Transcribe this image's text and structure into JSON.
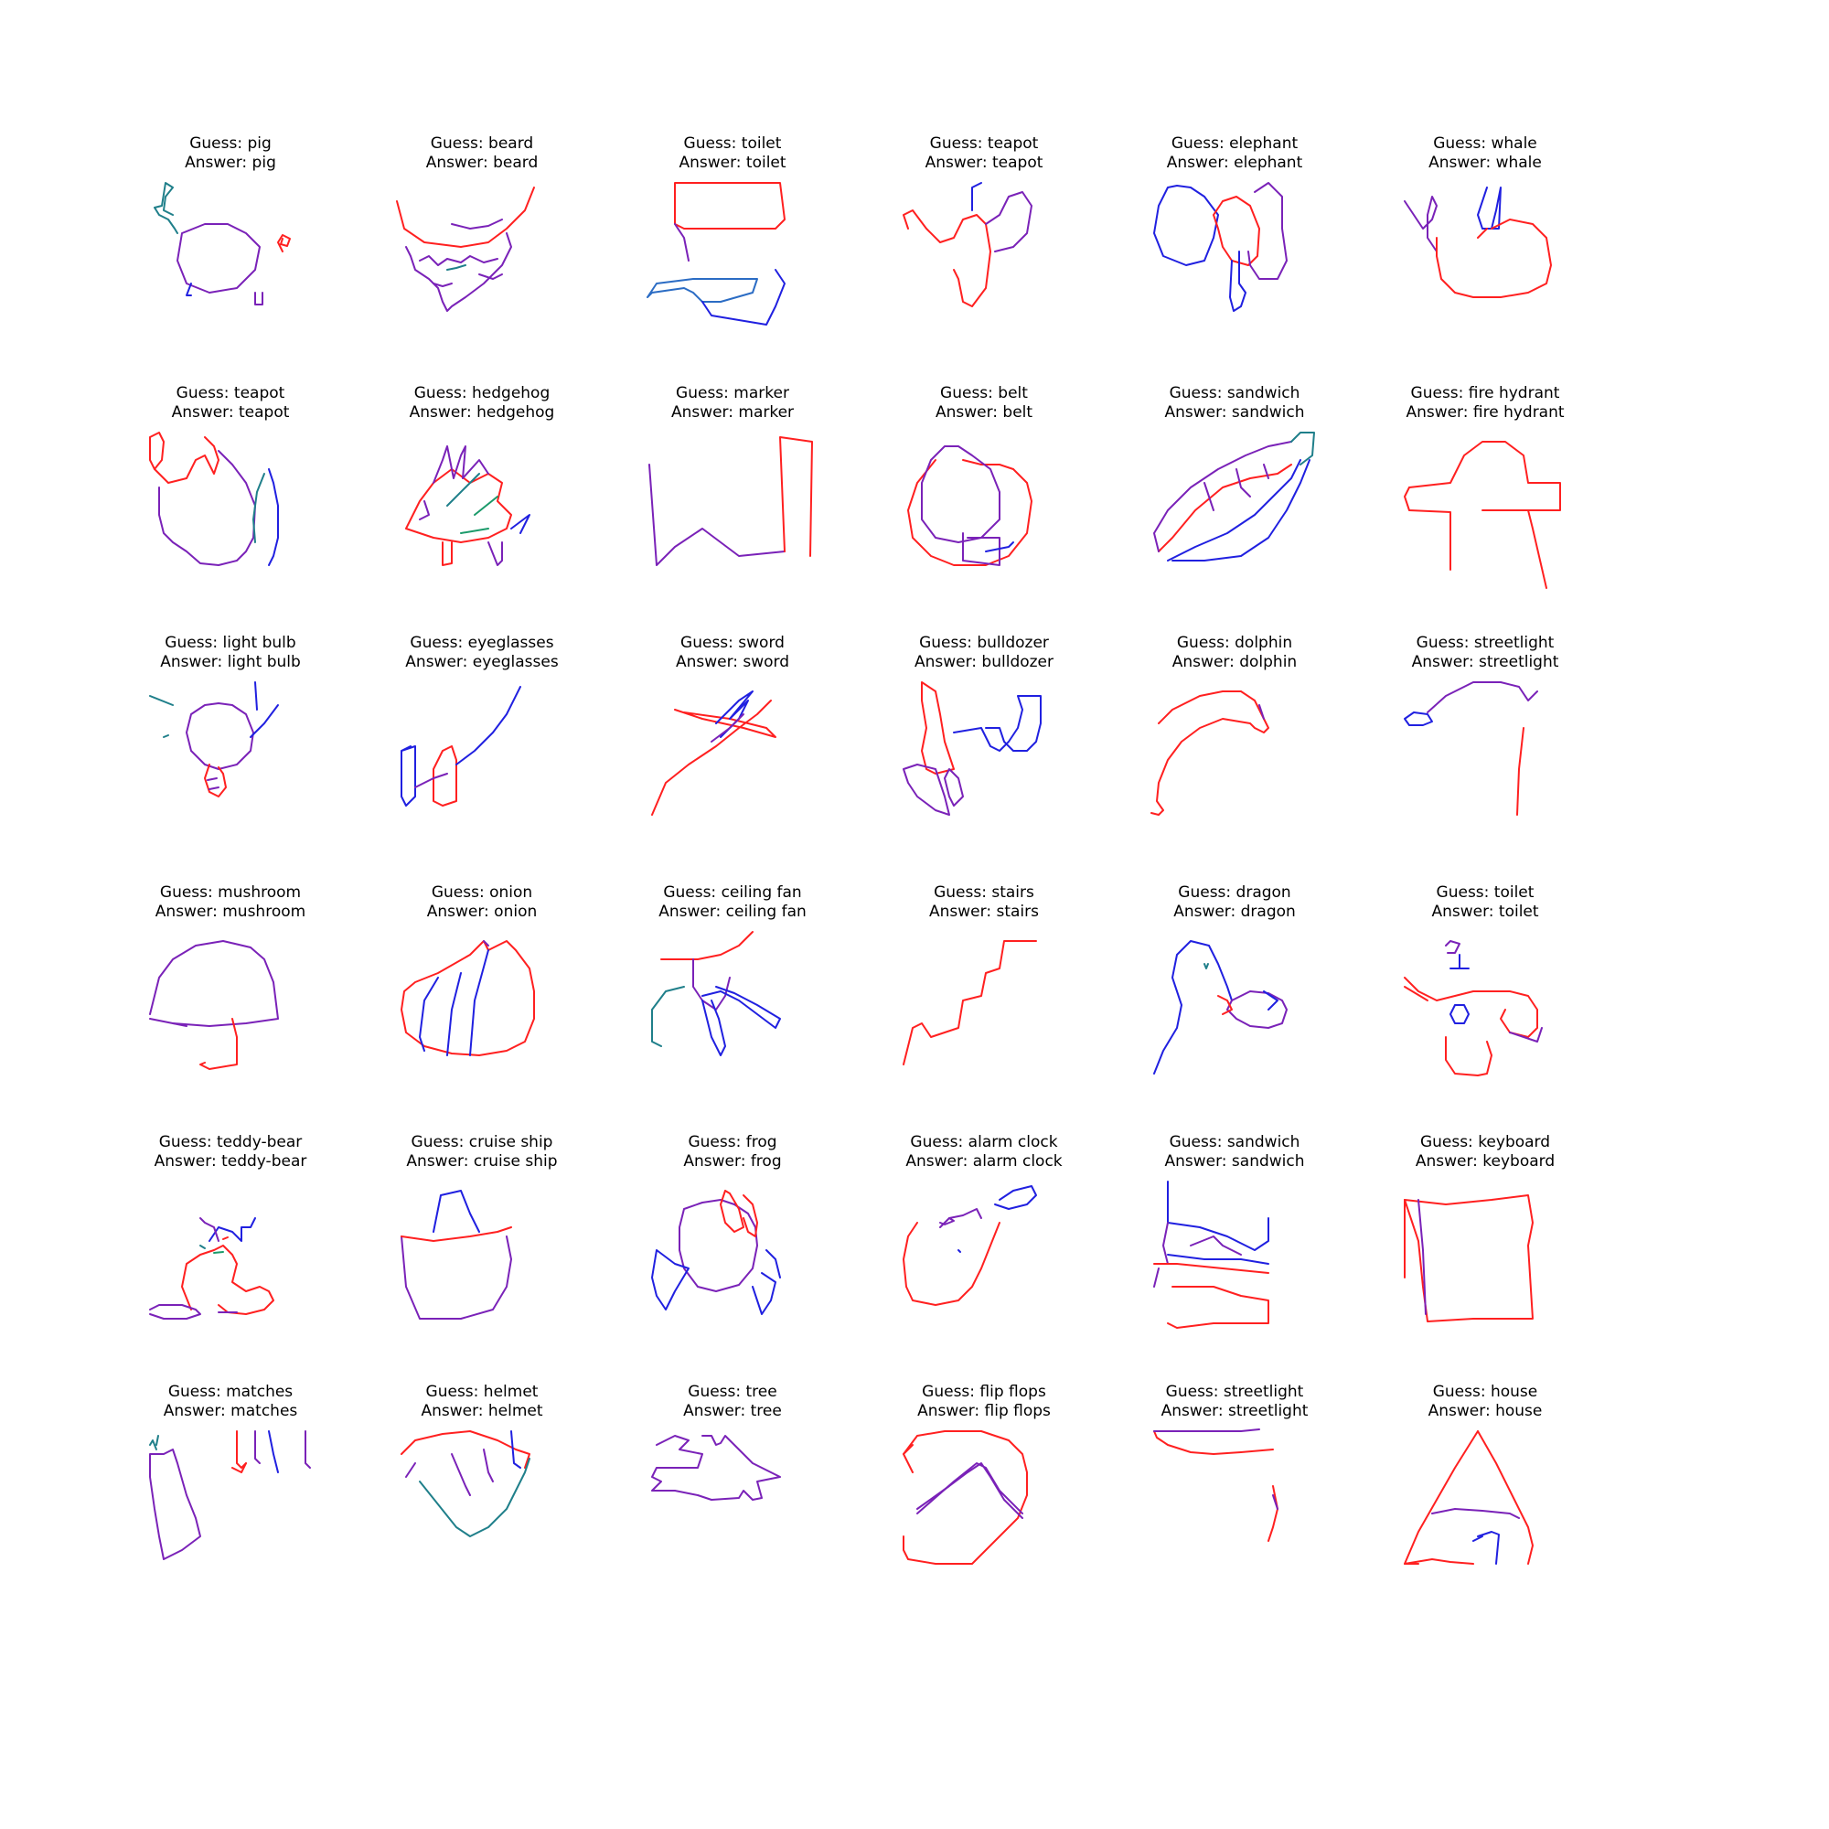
{
  "colors": {
    "red": "#ff2020",
    "blue": "#2020e0",
    "purple": "#7a22b8",
    "teal": "#1f7f8a",
    "steelblue": "#2b6cc4",
    "green": "#1a9a6a",
    "text": "#000000"
  },
  "guess_prefix": "Guess: ",
  "answer_prefix": "Answer: ",
  "cells": [
    {
      "guess": "pig",
      "answer": "pig"
    },
    {
      "guess": "beard",
      "answer": "beard"
    },
    {
      "guess": "toilet",
      "answer": "toilet"
    },
    {
      "guess": "teapot",
      "answer": "teapot"
    },
    {
      "guess": "elephant",
      "answer": "elephant"
    },
    {
      "guess": "whale",
      "answer": "whale"
    },
    {
      "guess": "teapot",
      "answer": "teapot"
    },
    {
      "guess": "hedgehog",
      "answer": "hedgehog"
    },
    {
      "guess": "marker",
      "answer": "marker"
    },
    {
      "guess": "belt",
      "answer": "belt"
    },
    {
      "guess": "sandwich",
      "answer": "sandwich"
    },
    {
      "guess": "fire hydrant",
      "answer": "fire hydrant"
    },
    {
      "guess": "light bulb",
      "answer": "light bulb"
    },
    {
      "guess": "eyeglasses",
      "answer": "eyeglasses"
    },
    {
      "guess": "sword",
      "answer": "sword"
    },
    {
      "guess": "bulldozer",
      "answer": "bulldozer"
    },
    {
      "guess": "dolphin",
      "answer": "dolphin"
    },
    {
      "guess": "streetlight",
      "answer": "streetlight"
    },
    {
      "guess": "mushroom",
      "answer": "mushroom"
    },
    {
      "guess": "onion",
      "answer": "onion"
    },
    {
      "guess": "ceiling fan",
      "answer": "ceiling fan"
    },
    {
      "guess": "stairs",
      "answer": "stairs"
    },
    {
      "guess": "dragon",
      "answer": "dragon"
    },
    {
      "guess": "toilet",
      "answer": "toilet"
    },
    {
      "guess": "teddy-bear",
      "answer": "teddy-bear"
    },
    {
      "guess": "cruise ship",
      "answer": "cruise ship"
    },
    {
      "guess": "frog",
      "answer": "frog"
    },
    {
      "guess": "alarm clock",
      "answer": "alarm clock"
    },
    {
      "guess": "sandwich",
      "answer": "sandwich"
    },
    {
      "guess": "keyboard",
      "answer": "keyboard"
    },
    {
      "guess": "matches",
      "answer": "matches"
    },
    {
      "guess": "helmet",
      "answer": "helmet"
    },
    {
      "guess": "tree",
      "answer": "tree"
    },
    {
      "guess": "flip flops",
      "answer": "flip flops"
    },
    {
      "guess": "streetlight",
      "answer": "streetlight"
    },
    {
      "guess": "house",
      "answer": "house"
    }
  ]
}
